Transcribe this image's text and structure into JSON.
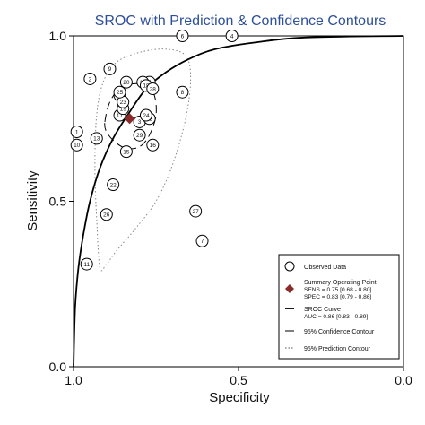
{
  "chart_data": {
    "type": "scatter",
    "title": "SROC with Prediction & Confidence Contours",
    "xlabel": "Specificity",
    "ylabel": "Sensitivity",
    "xlim": [
      1.0,
      0.0
    ],
    "ylim": [
      0.0,
      1.0
    ],
    "x_ticks": [
      "1.0",
      "0.5",
      "0.0"
    ],
    "y_ticks": [
      "0.0",
      "0.5",
      "1.0"
    ],
    "x_tick_values": [
      1.0,
      0.5,
      0.0
    ],
    "y_tick_values": [
      0.0,
      0.5,
      1.0
    ],
    "grid": false,
    "legend_position": "bottom-right",
    "colors": {
      "title": "#2e4f9a",
      "summary_point": "#8b2a2a",
      "lines": "#000000",
      "prediction_contour": "#888888"
    },
    "observed_points": [
      {
        "label": "1",
        "spec": 0.99,
        "sens": 0.71
      },
      {
        "label": "2",
        "spec": 0.95,
        "sens": 0.87
      },
      {
        "label": "3",
        "spec": 0.8,
        "sens": 0.74
      },
      {
        "label": "4",
        "spec": 0.52,
        "sens": 1.0
      },
      {
        "label": "5",
        "spec": 0.77,
        "sens": 0.86
      },
      {
        "label": "6",
        "spec": 0.67,
        "sens": 1.0
      },
      {
        "label": "7",
        "spec": 0.61,
        "sens": 0.38
      },
      {
        "label": "8",
        "spec": 0.67,
        "sens": 0.83
      },
      {
        "label": "9",
        "spec": 0.89,
        "sens": 0.9
      },
      {
        "label": "10",
        "spec": 0.99,
        "sens": 0.67
      },
      {
        "label": "11",
        "spec": 0.96,
        "sens": 0.31
      },
      {
        "label": "12",
        "spec": 0.77,
        "sens": 0.75
      },
      {
        "label": "13",
        "spec": 0.93,
        "sens": 0.69
      },
      {
        "label": "14",
        "spec": 0.79,
        "sens": 0.86
      },
      {
        "label": "15",
        "spec": 0.84,
        "sens": 0.65
      },
      {
        "label": "16",
        "spec": 0.76,
        "sens": 0.67
      },
      {
        "label": "17",
        "spec": 0.86,
        "sens": 0.76
      },
      {
        "label": "18",
        "spec": 0.78,
        "sens": 0.85
      },
      {
        "label": "19",
        "spec": 0.85,
        "sens": 0.78
      },
      {
        "label": "20",
        "spec": 0.84,
        "sens": 0.86
      },
      {
        "label": "21",
        "spec": 0.86,
        "sens": 0.82
      },
      {
        "label": "22",
        "spec": 0.88,
        "sens": 0.55
      },
      {
        "label": "23",
        "spec": 0.85,
        "sens": 0.8
      },
      {
        "label": "24",
        "spec": 0.78,
        "sens": 0.76
      },
      {
        "label": "25",
        "spec": 0.86,
        "sens": 0.83
      },
      {
        "label": "26",
        "spec": 0.9,
        "sens": 0.46
      },
      {
        "label": "27",
        "spec": 0.63,
        "sens": 0.47
      },
      {
        "label": "28",
        "spec": 0.76,
        "sens": 0.84
      },
      {
        "label": "29",
        "spec": 0.8,
        "sens": 0.7
      }
    ],
    "summary_point": {
      "spec": 0.83,
      "sens": 0.75
    },
    "sroc_curve": [
      {
        "spec": 1.0,
        "sens": 0.0
      },
      {
        "spec": 0.995,
        "sens": 0.18
      },
      {
        "spec": 0.985,
        "sens": 0.3
      },
      {
        "spec": 0.97,
        "sens": 0.4
      },
      {
        "spec": 0.95,
        "sens": 0.5
      },
      {
        "spec": 0.92,
        "sens": 0.6
      },
      {
        "spec": 0.88,
        "sens": 0.69
      },
      {
        "spec": 0.83,
        "sens": 0.77
      },
      {
        "spec": 0.78,
        "sens": 0.84
      },
      {
        "spec": 0.72,
        "sens": 0.89
      },
      {
        "spec": 0.65,
        "sens": 0.93
      },
      {
        "spec": 0.57,
        "sens": 0.96
      },
      {
        "spec": 0.45,
        "sens": 0.98
      },
      {
        "spec": 0.3,
        "sens": 0.995
      },
      {
        "spec": 0.0,
        "sens": 1.0
      }
    ],
    "confidence_contour": [
      {
        "spec": 0.905,
        "sens": 0.74
      },
      {
        "spec": 0.89,
        "sens": 0.8
      },
      {
        "spec": 0.86,
        "sens": 0.84
      },
      {
        "spec": 0.82,
        "sens": 0.855
      },
      {
        "spec": 0.78,
        "sens": 0.85
      },
      {
        "spec": 0.755,
        "sens": 0.82
      },
      {
        "spec": 0.75,
        "sens": 0.76
      },
      {
        "spec": 0.77,
        "sens": 0.7
      },
      {
        "spec": 0.8,
        "sens": 0.665
      },
      {
        "spec": 0.84,
        "sens": 0.66
      },
      {
        "spec": 0.875,
        "sens": 0.68
      },
      {
        "spec": 0.9,
        "sens": 0.71
      }
    ],
    "prediction_contour": [
      {
        "spec": 0.92,
        "sens": 0.3
      },
      {
        "spec": 0.93,
        "sens": 0.45
      },
      {
        "spec": 0.935,
        "sens": 0.6
      },
      {
        "spec": 0.93,
        "sens": 0.76
      },
      {
        "spec": 0.91,
        "sens": 0.86
      },
      {
        "spec": 0.87,
        "sens": 0.92
      },
      {
        "spec": 0.8,
        "sens": 0.95
      },
      {
        "spec": 0.72,
        "sens": 0.96
      },
      {
        "spec": 0.66,
        "sens": 0.94
      },
      {
        "spec": 0.645,
        "sens": 0.87
      },
      {
        "spec": 0.66,
        "sens": 0.75
      },
      {
        "spec": 0.7,
        "sens": 0.61
      },
      {
        "spec": 0.75,
        "sens": 0.5
      },
      {
        "spec": 0.81,
        "sens": 0.42
      },
      {
        "spec": 0.87,
        "sens": 0.35
      },
      {
        "spec": 0.9,
        "sens": 0.31
      }
    ],
    "legend": [
      {
        "key": "observed",
        "lines": [
          "Observed Data"
        ]
      },
      {
        "key": "summary",
        "lines": [
          "Summary Operating Point",
          "SENS = 0.75 [0.68 - 0.80]",
          "SPEC = 0.83 [0.79 - 0.86]"
        ]
      },
      {
        "key": "sroc",
        "lines": [
          "SROC Curve",
          "AUC = 0.86 [0.83 - 0.89]"
        ]
      },
      {
        "key": "confidence",
        "lines": [
          "95% Confidence Contour"
        ]
      },
      {
        "key": "prediction",
        "lines": [
          "95% Prediction Contour"
        ]
      }
    ]
  }
}
